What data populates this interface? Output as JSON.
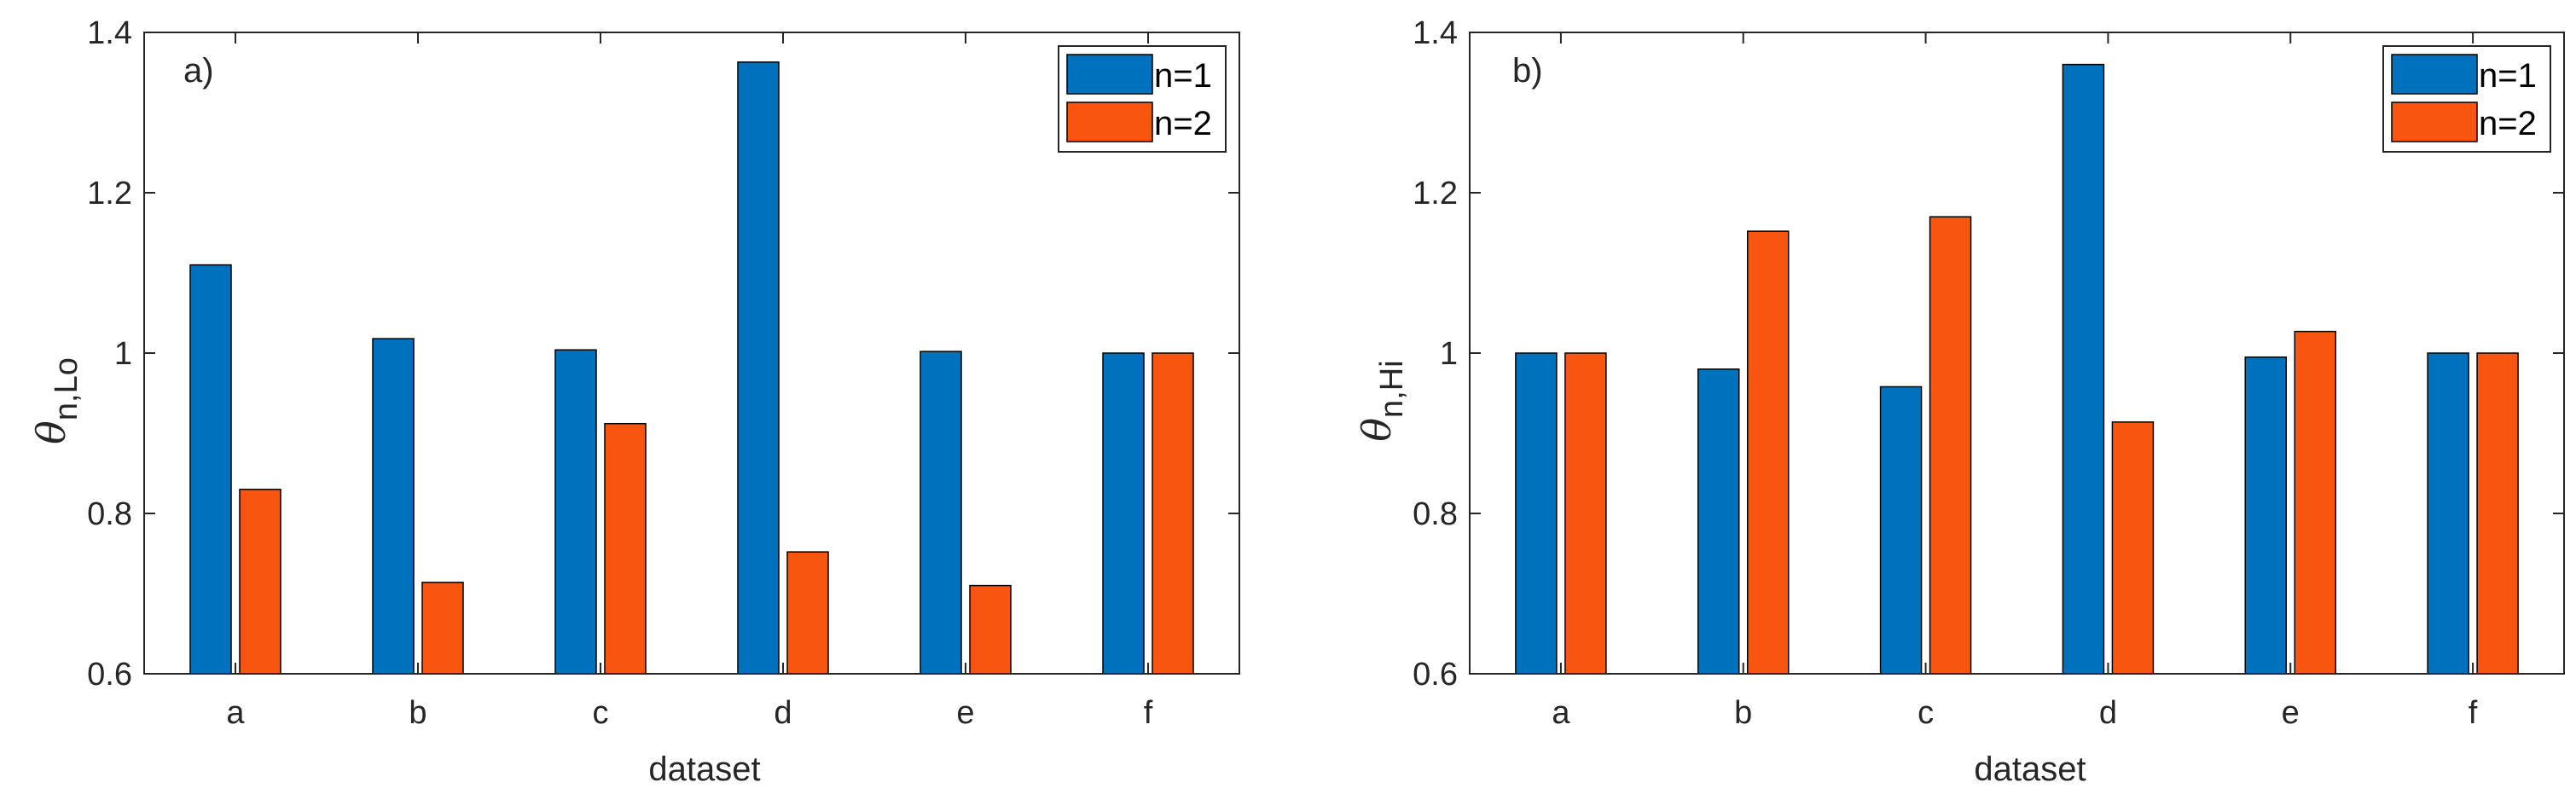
{
  "colors": {
    "series1": "#0072BD",
    "series2": "#F85510",
    "axis": "#262626",
    "bar_edge": "#000000"
  },
  "chart_data": [
    {
      "type": "bar",
      "panel_label": "a)",
      "categories": [
        "a",
        "b",
        "c",
        "d",
        "e",
        "f"
      ],
      "series": [
        {
          "name": "n=1",
          "values": [
            1.11,
            1.018,
            1.004,
            1.363,
            1.002,
            1.0
          ]
        },
        {
          "name": "n=2",
          "values": [
            0.83,
            0.714,
            0.912,
            0.752,
            0.71,
            1.0
          ]
        }
      ],
      "xlabel": "dataset",
      "ylabel": {
        "symbol": "θ",
        "subscript": "n,Lo"
      },
      "ylim": [
        0.6,
        1.4
      ],
      "yticks": [
        0.6,
        0.8,
        1,
        1.2,
        1.4
      ],
      "ytick_labels": [
        "0.6",
        "0.8",
        "1",
        "1.2",
        "1.4"
      ],
      "legend": "top-right"
    },
    {
      "type": "bar",
      "panel_label": "b)",
      "categories": [
        "a",
        "b",
        "c",
        "d",
        "e",
        "f"
      ],
      "series": [
        {
          "name": "n=1",
          "values": [
            1.0,
            0.98,
            0.958,
            1.36,
            0.995,
            1.0
          ]
        },
        {
          "name": "n=2",
          "values": [
            1.0,
            1.152,
            1.17,
            0.914,
            1.027,
            1.0
          ]
        }
      ],
      "xlabel": "dataset",
      "ylabel": {
        "symbol": "θ",
        "subscript": "n,Hi"
      },
      "ylim": [
        0.6,
        1.4
      ],
      "yticks": [
        0.6,
        0.8,
        1,
        1.2,
        1.4
      ],
      "ytick_labels": [
        "0.6",
        "0.8",
        "1",
        "1.2",
        "1.4"
      ],
      "legend": "top-right"
    }
  ]
}
